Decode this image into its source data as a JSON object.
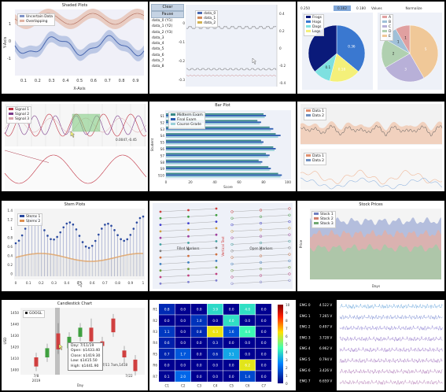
{
  "shaded": {
    "title": "Shaded Plots",
    "xlabel": "X-Axis",
    "ylabel": "Y-Axis",
    "legend": [
      "Uncertain Data",
      "Overlapping"
    ],
    "yticks": [
      "1",
      "0",
      "-1"
    ],
    "xticks": [
      "0.1",
      "0.2",
      "0.3",
      "0.4",
      "0.5",
      "0.6",
      "0.7",
      "0.8",
      "0.9"
    ]
  },
  "stream": {
    "clear_label": "Clear",
    "pause_label": "Pause",
    "list": [
      "data_0 (Y1)",
      "data_1 (Y2)",
      "data_2 (Y3)",
      "data_3",
      "data_4",
      "data_5",
      "data_6",
      "data_7",
      "data_8"
    ],
    "legend": [
      "data_0",
      "data_1",
      "data_2"
    ],
    "yticks": [
      "0",
      "-0.1",
      "-0.2",
      "-0.3"
    ],
    "yticks_right": [
      "0.4",
      "0.2",
      "0",
      "-0.2",
      "-0.4"
    ]
  },
  "pie": {
    "cursor_readout": "0.250",
    "selected": "0.162",
    "value2": "0.180",
    "values_label": "Values",
    "normalize_label": "Normalize",
    "legend_left": [
      "Frogs",
      "Hogs",
      "Dogs",
      "Logs"
    ],
    "left_labels": [
      "0.36",
      "0.18",
      "0.1"
    ],
    "legend_right": [
      "A",
      "B",
      "C",
      "D",
      "E"
    ],
    "right_labels": [
      "5",
      "3",
      "2",
      "1",
      "1"
    ]
  },
  "drag": {
    "legend": [
      "Signal 1",
      "Signal 2",
      "Signal 3"
    ],
    "readout": "0.0047,-0.45"
  },
  "bars": {
    "title": "Bar Plot",
    "legend": [
      "Midterm Exam",
      "Final Exam",
      "Course Grade"
    ],
    "categories": [
      "S1",
      "S2",
      "S3",
      "S4",
      "S5",
      "S6",
      "S7",
      "S8",
      "S9",
      "S10"
    ],
    "xlabel": "Score",
    "ylabel": "Student",
    "xticks": [
      "0",
      "20",
      "40",
      "60",
      "80",
      "100"
    ]
  },
  "subplots": {
    "legend_top": [
      "Data 1",
      "Data 2"
    ],
    "legend_bottom": [
      "Data 1",
      "Data 2"
    ]
  },
  "stem": {
    "title": "Stem Plots",
    "legend": [
      "Stems 1",
      "Stems 2"
    ],
    "yticks": [
      "1.4",
      "1.2",
      "1",
      "0.8",
      "0.6",
      "0.4",
      "0.2",
      "0"
    ],
    "xticks": [
      "0",
      "0.1",
      "0.2",
      "0.3",
      "0.4",
      "0.5",
      "0.6",
      "0.7",
      "0.8",
      "0.9",
      "1"
    ]
  },
  "markers": {
    "filled_label": "Filled Markers",
    "open_label": "Open Markers",
    "vertical_label": "Vertical Text"
  },
  "stock": {
    "title": "Stock Prices",
    "legend": [
      "Stock 1",
      "Stock 2",
      "Stock 3"
    ],
    "xlabel": "Days",
    "ylabel": "Price"
  },
  "candle": {
    "title": "Candlestick Chart",
    "legend": "GOOGL",
    "ylabel": "USD",
    "xlabel": "Day",
    "yticks": [
      "1450",
      "1440",
      "1430",
      "1420",
      "1410",
      "1400"
    ],
    "xticks": [
      "7/8\n2019",
      "7/22"
    ],
    "x_first": "7/8",
    "x_first_year": "2019",
    "x_last": "7/22",
    "hover": "7/11 7am,1418",
    "tooltip": {
      "day": "Day:   7/11/19",
      "open": "Open:  $1433.40",
      "close": "Close: $1419.30",
      "low": "Low:   $1415.50",
      "high": "High:  $1441.90"
    }
  },
  "heatmap": {
    "rows": [
      "R1",
      "R2",
      "R3",
      "R4",
      "R5",
      "R6",
      "R7"
    ],
    "cols": [
      "C1",
      "C2",
      "C3",
      "C4",
      "C5",
      "C6",
      "C7"
    ],
    "values": [
      [
        "0.8",
        "0.0",
        "0.0",
        "3.9",
        "0.0",
        "4.0",
        "0.0"
      ],
      [
        "0.0",
        "0.0",
        "1.0",
        "0.0",
        "4.0",
        "0.0",
        "0.0"
      ],
      [
        "1.1",
        "0.0",
        "0.8",
        "6.3",
        "1.6",
        "4.4",
        "0.0"
      ],
      [
        "0.6",
        "0.0",
        "0.0",
        "0.3",
        "0.0",
        "0.0",
        "0.0"
      ],
      [
        "0.7",
        "1.7",
        "0.0",
        "0.6",
        "3.1",
        "0.0",
        "0.0"
      ],
      [
        "0.0",
        "0.0",
        "0.0",
        "0.0",
        "0.0",
        "6.2",
        "0.0"
      ],
      [
        "0.1",
        "2.0",
        "0.0",
        "0.0",
        "0.0",
        "1.4",
        "0.0"
      ]
    ],
    "scale": [
      "10",
      "9",
      "8",
      "7",
      "6",
      "5",
      "4",
      "3",
      "2",
      "1",
      "0"
    ]
  },
  "emg": {
    "labels": [
      "EMG 0",
      "EMG 1",
      "EMG 2",
      "EMG 3",
      "EMG 4",
      "EMG 5",
      "EMG 6",
      "EMG 7"
    ],
    "values": [
      "4.522 V",
      "7.265 V",
      "0.497 V",
      "3.728 V",
      "6.962 V",
      "0.794 V",
      "3.426 V",
      "6.659 V"
    ]
  }
}
